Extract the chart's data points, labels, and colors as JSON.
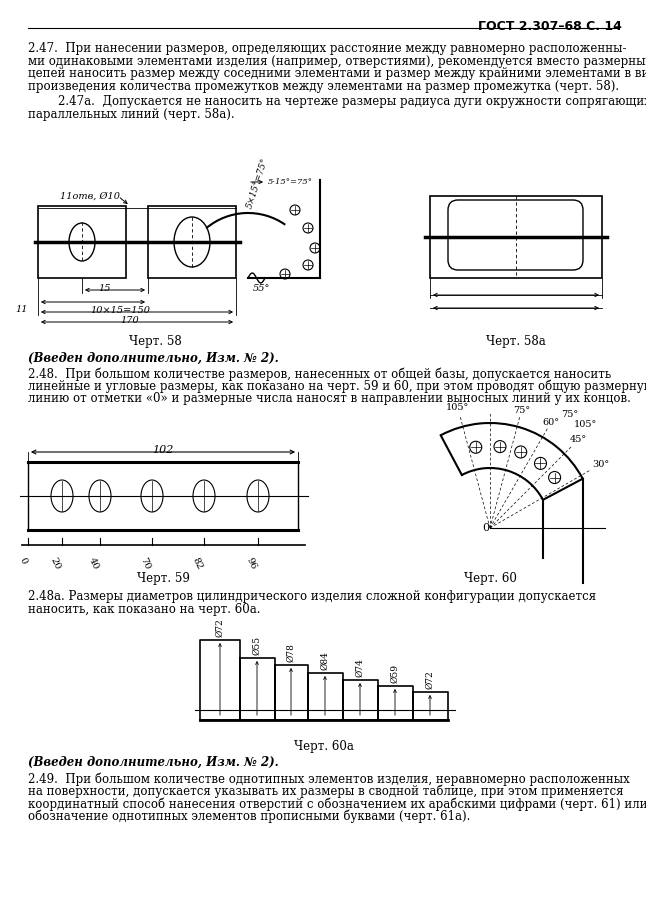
{
  "page_header": "ГОСТ 2.307–68 С. 14",
  "background_color": "#ffffff",
  "text_color": "#000000",
  "chert58_label": "Черт. 58",
  "chert58a_label": "Черт. 58а",
  "chert59_label": "Черт. 59",
  "chert60_label": "Черт. 60",
  "chert60a_label": "Черт. 60а",
  "paragraph_vveden1": "(Введен дополнительно, Изм. № 2).",
  "paragraph_vveden2": "(Введен дополнительно, Изм. № 2)."
}
